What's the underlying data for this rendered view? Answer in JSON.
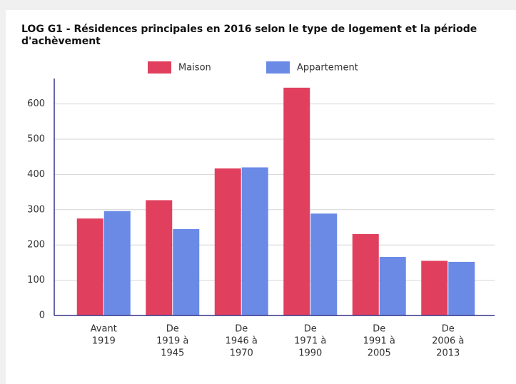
{
  "chart_data": {
    "type": "bar",
    "title": "LOG G1 - Résidences principales en 2016 selon le type de logement et la période d'achèvement",
    "categories": [
      [
        "Avant",
        "1919"
      ],
      [
        "De",
        "1919 à",
        "1945"
      ],
      [
        "De",
        "1946 à",
        "1970"
      ],
      [
        "De",
        "1971 à",
        "1990"
      ],
      [
        "De",
        "1991 à",
        "2005"
      ],
      [
        "De",
        "2006 à",
        "2013"
      ]
    ],
    "series": [
      {
        "name": "Maison",
        "color": "#e0405e",
        "values": [
          275,
          327,
          417,
          646,
          231,
          155
        ]
      },
      {
        "name": "Appartement",
        "color": "#6a8ae6",
        "values": [
          296,
          245,
          420,
          289,
          166,
          152
        ]
      }
    ],
    "ylim": [
      0,
      672
    ],
    "yticks": [
      0,
      100,
      200,
      300,
      400,
      500,
      600
    ],
    "grid": true,
    "legend": "top"
  }
}
